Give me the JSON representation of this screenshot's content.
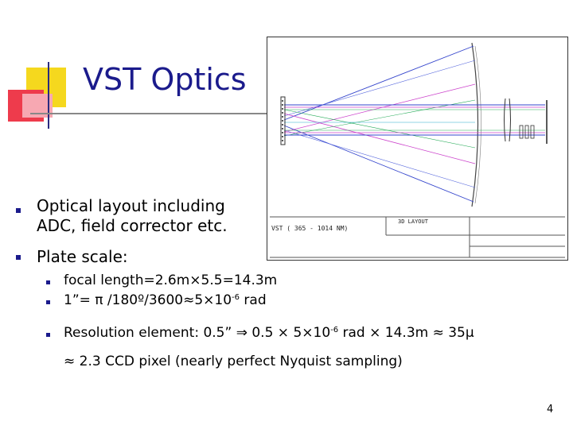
{
  "slide": {
    "title": "VST Optics",
    "bullets": [
      {
        "lines": [
          "Optical layout including",
          "ADC, field corrector etc."
        ]
      },
      {
        "lines": [
          "Plate scale:"
        ]
      }
    ],
    "sub_bullets": {
      "focal": "focal length=2.6m×5.5=14.3m",
      "arcsec_prefix": "1”= π /180º/3600≈5×10",
      "arcsec_exp": "-6",
      "arcsec_suffix": " rad",
      "res_prefix": "Resolution element: 0.5” ⇒ 0.5 × 5×10",
      "res_exp": "-6",
      "res_suffix": " rad × 14.3m ≈ 35μ",
      "ccd": "≈ 2.3 CCD pixel (nearly perfect Nyquist sampling)"
    },
    "figure": {
      "label_left": "VST ( 365 - 1014 NM)",
      "label_right": "3D LAYOUT"
    },
    "page_number": "4"
  },
  "colors": {
    "title": "#1b1b8c",
    "ray_blue": "#3344cc",
    "ray_magenta": "#cc44cc",
    "ray_green": "#22aa55",
    "ray_cyan": "#22aacc"
  }
}
